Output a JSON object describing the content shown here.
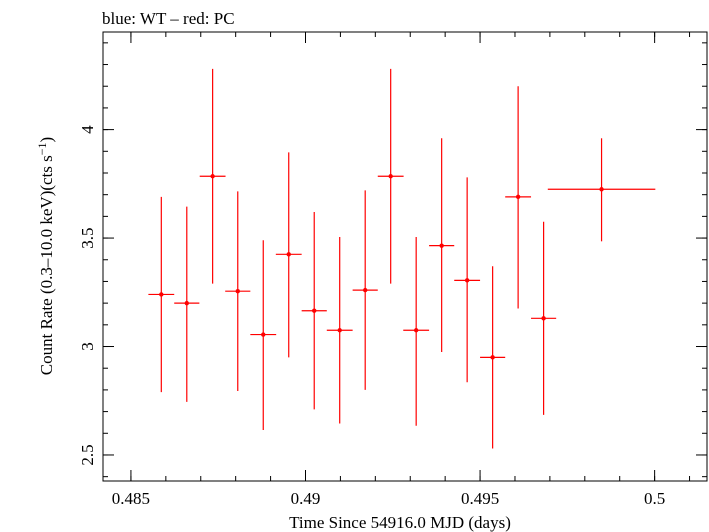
{
  "chart_data": {
    "type": "scatter",
    "title": "blue: WT – red: PC",
    "xlabel": "Time Since 54916.0 MJD (days)",
    "ylabel_main": "Count Rate (0.3–10.0 keV)(cts s",
    "ylabel_sup": "−1",
    "ylabel_close": ")",
    "xlim": [
      0.4842,
      0.5015
    ],
    "ylim": [
      2.38,
      4.45
    ],
    "xticks": [
      {
        "value": 0.485,
        "label": "0.485"
      },
      {
        "value": 0.49,
        "label": "0.49"
      },
      {
        "value": 0.495,
        "label": "0.495"
      },
      {
        "value": 0.5,
        "label": "0.5"
      }
    ],
    "yticks": [
      {
        "value": 2.5,
        "label": "2.5"
      },
      {
        "value": 3.0,
        "label": "3"
      },
      {
        "value": 3.5,
        "label": "3.5"
      },
      {
        "value": 4.0,
        "label": "4"
      }
    ],
    "x_minor_step": 0.001,
    "y_minor_step": 0.1,
    "series": [
      {
        "name": "PC",
        "color": "#ff0000",
        "points": [
          {
            "x": 0.48587,
            "xerr": 0.00037,
            "y": 3.24,
            "ylo": 2.79,
            "yhi": 3.69
          },
          {
            "x": 0.4866,
            "xerr": 0.00036,
            "y": 3.2,
            "ylo": 2.745,
            "yhi": 3.645
          },
          {
            "x": 0.48734,
            "xerr": 0.00037,
            "y": 3.785,
            "ylo": 3.29,
            "yhi": 4.28
          },
          {
            "x": 0.48806,
            "xerr": 0.00036,
            "y": 3.255,
            "ylo": 2.795,
            "yhi": 3.715
          },
          {
            "x": 0.48879,
            "xerr": 0.00037,
            "y": 3.055,
            "ylo": 2.615,
            "yhi": 3.49
          },
          {
            "x": 0.48952,
            "xerr": 0.00037,
            "y": 3.425,
            "ylo": 2.95,
            "yhi": 3.895
          },
          {
            "x": 0.49025,
            "xerr": 0.00036,
            "y": 3.165,
            "ylo": 2.71,
            "yhi": 3.62
          },
          {
            "x": 0.49098,
            "xerr": 0.00037,
            "y": 3.075,
            "ylo": 2.645,
            "yhi": 3.505
          },
          {
            "x": 0.49171,
            "xerr": 0.00036,
            "y": 3.26,
            "ylo": 2.8,
            "yhi": 3.72
          },
          {
            "x": 0.49244,
            "xerr": 0.00037,
            "y": 3.785,
            "ylo": 3.29,
            "yhi": 4.28
          },
          {
            "x": 0.49317,
            "xerr": 0.00037,
            "y": 3.075,
            "ylo": 2.635,
            "yhi": 3.505
          },
          {
            "x": 0.4939,
            "xerr": 0.00036,
            "y": 3.465,
            "ylo": 2.975,
            "yhi": 3.96
          },
          {
            "x": 0.49463,
            "xerr": 0.00037,
            "y": 3.305,
            "ylo": 2.835,
            "yhi": 3.78
          },
          {
            "x": 0.49536,
            "xerr": 0.00036,
            "y": 2.95,
            "ylo": 2.53,
            "yhi": 3.37
          },
          {
            "x": 0.49609,
            "xerr": 0.00037,
            "y": 3.69,
            "ylo": 3.175,
            "yhi": 4.2
          },
          {
            "x": 0.49682,
            "xerr": 0.00036,
            "y": 3.13,
            "ylo": 2.685,
            "yhi": 3.575
          },
          {
            "x": 0.49848,
            "xerr": 0.00154,
            "y": 3.725,
            "ylo": 3.485,
            "yhi": 3.96
          }
        ]
      }
    ]
  }
}
